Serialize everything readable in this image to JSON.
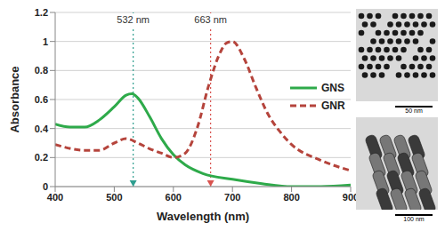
{
  "chart_data": {
    "type": "line",
    "x_label": "Wavelength (nm)",
    "y_label": "Absorbance",
    "xlim": [
      400,
      900
    ],
    "xticks": [
      400,
      500,
      600,
      700,
      800,
      900
    ],
    "ylim": [
      0,
      1.2
    ],
    "yticks": [
      0,
      0.2,
      0.4,
      0.6,
      0.8,
      1,
      1.2
    ],
    "grid": true,
    "legend": "right",
    "series": [
      {
        "name": "GNS",
        "color": "#2eaa4a",
        "line_style": "solid",
        "x": [
          400,
          425,
          450,
          475,
          500,
          520,
          530,
          540,
          560,
          580,
          600,
          620,
          650,
          700,
          750,
          800,
          850,
          900
        ],
        "values": [
          0.43,
          0.41,
          0.41,
          0.46,
          0.55,
          0.63,
          0.64,
          0.61,
          0.48,
          0.33,
          0.22,
          0.15,
          0.09,
          0.05,
          0.02,
          0.0,
          0.0,
          0.01
        ]
      },
      {
        "name": "GNR",
        "color": "#b5443c",
        "line_style": "dashed",
        "x": [
          400,
          450,
          475,
          500,
          520,
          540,
          560,
          580,
          600,
          620,
          640,
          660,
          680,
          690,
          700,
          720,
          740,
          760,
          780,
          800,
          850,
          900
        ],
        "values": [
          0.29,
          0.25,
          0.25,
          0.3,
          0.33,
          0.3,
          0.26,
          0.23,
          0.2,
          0.23,
          0.4,
          0.7,
          0.93,
          0.99,
          1.0,
          0.88,
          0.68,
          0.5,
          0.38,
          0.29,
          0.18,
          0.11
        ]
      }
    ],
    "annotations": [
      {
        "x": 532,
        "label": "532 nm",
        "color": "#2e9e8f"
      },
      {
        "x": 663,
        "label": "663 nm",
        "color": "#d9534f"
      }
    ],
    "images": [
      {
        "scale_bar": "50 nm"
      },
      {
        "scale_bar": "100 nm"
      }
    ]
  }
}
